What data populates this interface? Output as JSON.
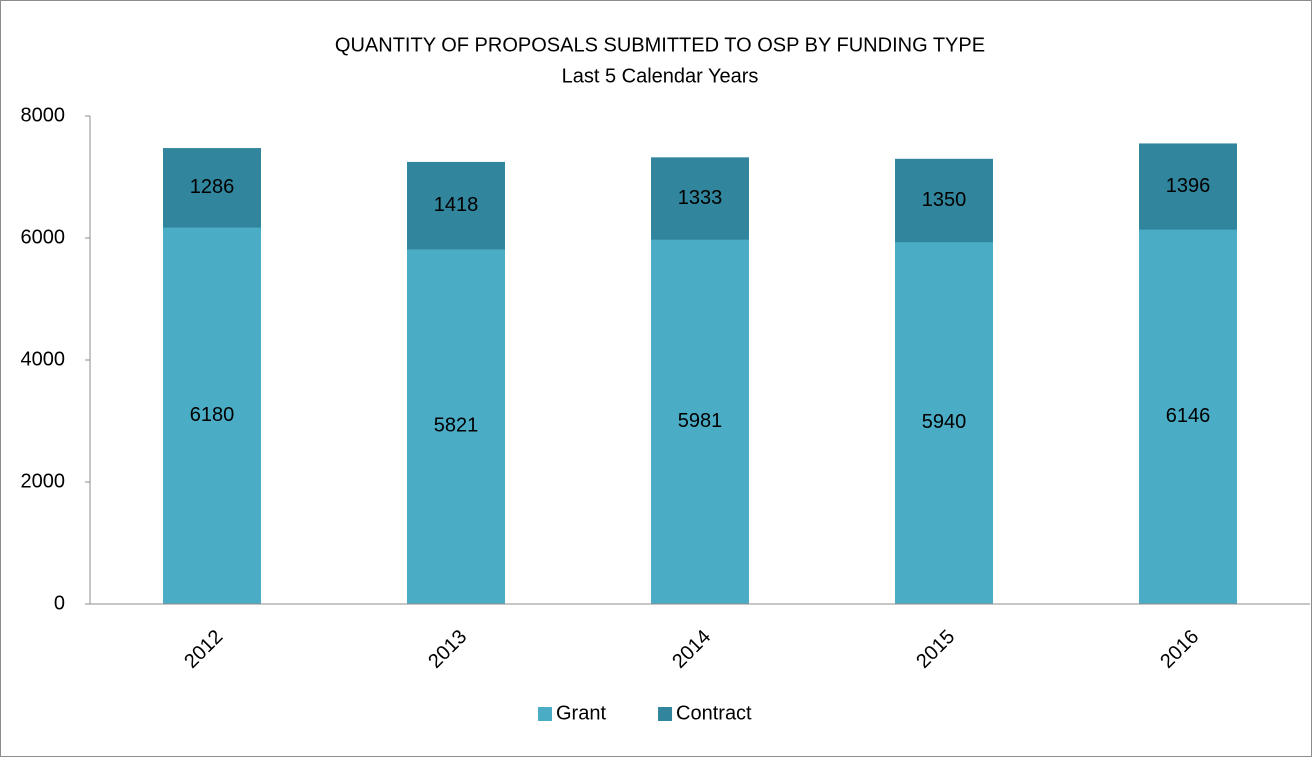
{
  "chart_data": {
    "type": "stacked_bar",
    "title": "QUANTITY OF PROPOSALS SUBMITTED TO OSP BY FUNDING TYPE",
    "subtitle": "Last 5 Calendar Years",
    "categories": [
      "2012",
      "2013",
      "2014",
      "2015",
      "2016"
    ],
    "series": [
      {
        "name": "Grant",
        "color": "#4bacc6",
        "values": [
          6180,
          5821,
          5981,
          5940,
          6146
        ]
      },
      {
        "name": "Contract",
        "color": "#31859c",
        "values": [
          1286,
          1418,
          1333,
          1350,
          1396
        ]
      }
    ],
    "ylim": [
      0,
      8000
    ],
    "yticks": [
      0,
      2000,
      4000,
      6000,
      8000
    ],
    "grid": false,
    "legend": "bottom"
  }
}
